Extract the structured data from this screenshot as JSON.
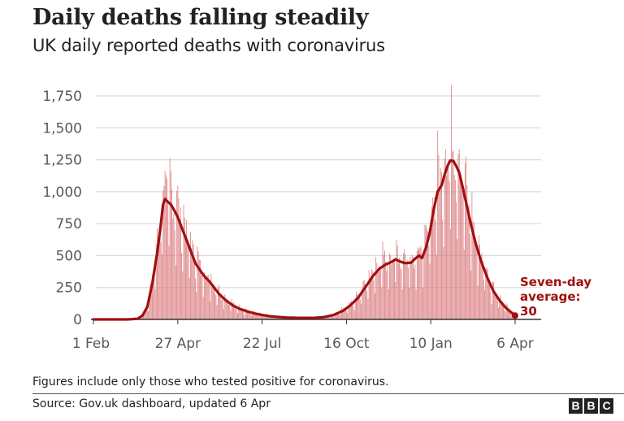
{
  "chart_data": {
    "type": "bar",
    "title": "Daily deaths falling steadily",
    "subtitle": "UK daily reported deaths with coronavirus",
    "xlabel": "",
    "ylabel": "",
    "ylim": [
      0,
      1750
    ],
    "yticks": [
      0,
      250,
      500,
      750,
      1000,
      1250,
      1500,
      1750
    ],
    "ytick_labels": [
      "0",
      "250",
      "500",
      "750",
      "1,000",
      "1,250",
      "1,500",
      "1,750"
    ],
    "x_start": "2020-02-01",
    "x_end": "2021-04-06",
    "xtick_days": [
      0,
      86,
      172,
      258,
      344,
      430
    ],
    "xtick_labels": [
      "1 Feb",
      "27 Apr",
      "22 Jul",
      "16 Oct",
      "10 Jan",
      "6 Apr"
    ],
    "grid": true,
    "series": [
      {
        "name": "Daily deaths",
        "kind": "bars",
        "color": "#d9777a"
      },
      {
        "name": "Seven-day average",
        "kind": "line",
        "color": "#a01010",
        "points_day_value": [
          [
            0,
            0
          ],
          [
            35,
            0
          ],
          [
            45,
            5
          ],
          [
            50,
            30
          ],
          [
            55,
            100
          ],
          [
            60,
            280
          ],
          [
            65,
            520
          ],
          [
            68,
            700
          ],
          [
            71,
            900
          ],
          [
            73,
            943
          ],
          [
            76,
            920
          ],
          [
            79,
            900
          ],
          [
            82,
            860
          ],
          [
            86,
            800
          ],
          [
            92,
            680
          ],
          [
            98,
            560
          ],
          [
            104,
            440
          ],
          [
            110,
            370
          ],
          [
            114,
            330
          ],
          [
            118,
            300
          ],
          [
            122,
            260
          ],
          [
            128,
            200
          ],
          [
            135,
            150
          ],
          [
            142,
            110
          ],
          [
            150,
            80
          ],
          [
            158,
            60
          ],
          [
            168,
            40
          ],
          [
            180,
            25
          ],
          [
            195,
            15
          ],
          [
            210,
            12
          ],
          [
            225,
            12
          ],
          [
            235,
            18
          ],
          [
            245,
            35
          ],
          [
            255,
            70
          ],
          [
            262,
            110
          ],
          [
            270,
            170
          ],
          [
            278,
            260
          ],
          [
            285,
            340
          ],
          [
            292,
            400
          ],
          [
            298,
            430
          ],
          [
            304,
            450
          ],
          [
            308,
            470
          ],
          [
            312,
            455
          ],
          [
            318,
            440
          ],
          [
            324,
            445
          ],
          [
            328,
            475
          ],
          [
            332,
            500
          ],
          [
            335,
            480
          ],
          [
            339,
            560
          ],
          [
            343,
            680
          ],
          [
            347,
            860
          ],
          [
            351,
            1000
          ],
          [
            355,
            1050
          ],
          [
            358,
            1130
          ],
          [
            361,
            1200
          ],
          [
            364,
            1245
          ],
          [
            367,
            1240
          ],
          [
            370,
            1200
          ],
          [
            373,
            1150
          ],
          [
            377,
            1020
          ],
          [
            381,
            880
          ],
          [
            385,
            740
          ],
          [
            390,
            590
          ],
          [
            396,
            440
          ],
          [
            402,
            320
          ],
          [
            408,
            220
          ],
          [
            414,
            150
          ],
          [
            420,
            95
          ],
          [
            426,
            55
          ],
          [
            430,
            30
          ]
        ]
      }
    ],
    "annotation": {
      "lines": [
        "Seven-day",
        "average:",
        "30"
      ],
      "value": 30,
      "day": 430
    }
  },
  "footer": {
    "note": "Figures include only those who tested positive for coronavirus.",
    "source": "Source: Gov.uk dashboard, updated 6 Apr",
    "logo": [
      "B",
      "B",
      "C"
    ]
  }
}
